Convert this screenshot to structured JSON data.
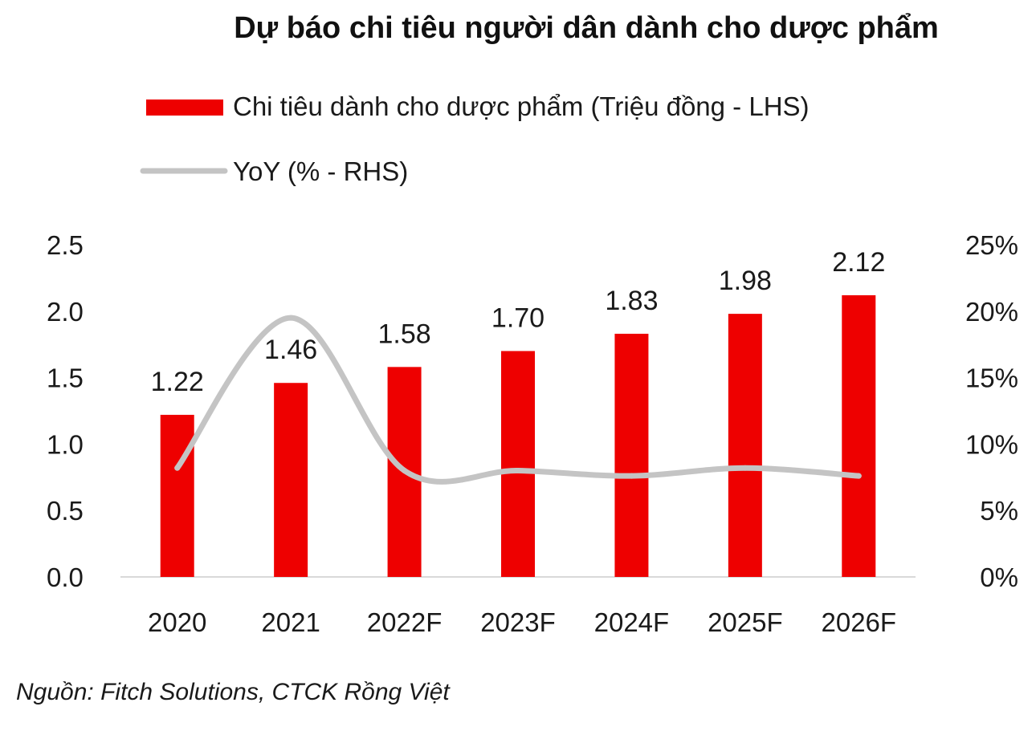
{
  "chart_data": {
    "type": "bar",
    "title": "Dự báo chi tiêu người dân dành cho dược phẩm",
    "categories": [
      "2020",
      "2021",
      "2022F",
      "2023F",
      "2024F",
      "2025F",
      "2026F"
    ],
    "series": [
      {
        "name": "Chi tiêu dành cho dược phẩm (Triệu đồng - LHS)",
        "type": "bar",
        "axis": "left",
        "color": "#ee0000",
        "values": [
          1.22,
          1.46,
          1.58,
          1.7,
          1.83,
          1.98,
          2.12
        ],
        "labels": [
          "1.22",
          "1.46",
          "1.58",
          "1.70",
          "1.83",
          "1.98",
          "2.12"
        ]
      },
      {
        "name": "YoY (% - RHS)",
        "type": "line",
        "axis": "right",
        "color": "#c4c4c4",
        "values": [
          8.2,
          19.5,
          8.0,
          8.0,
          7.6,
          8.2,
          7.6
        ]
      }
    ],
    "left_axis": {
      "ylim": [
        0,
        2.5
      ],
      "ticks": [
        "0.0",
        "0.5",
        "1.0",
        "1.5",
        "2.0",
        "2.5"
      ]
    },
    "right_axis": {
      "ylim": [
        0,
        25
      ],
      "ticks": [
        "0%",
        "5%",
        "10%",
        "15%",
        "20%",
        "25%"
      ]
    },
    "grid": false,
    "legend_position": "top-left"
  },
  "source_note": "Nguồn: Fitch Solutions, CTCK Rồng Việt"
}
